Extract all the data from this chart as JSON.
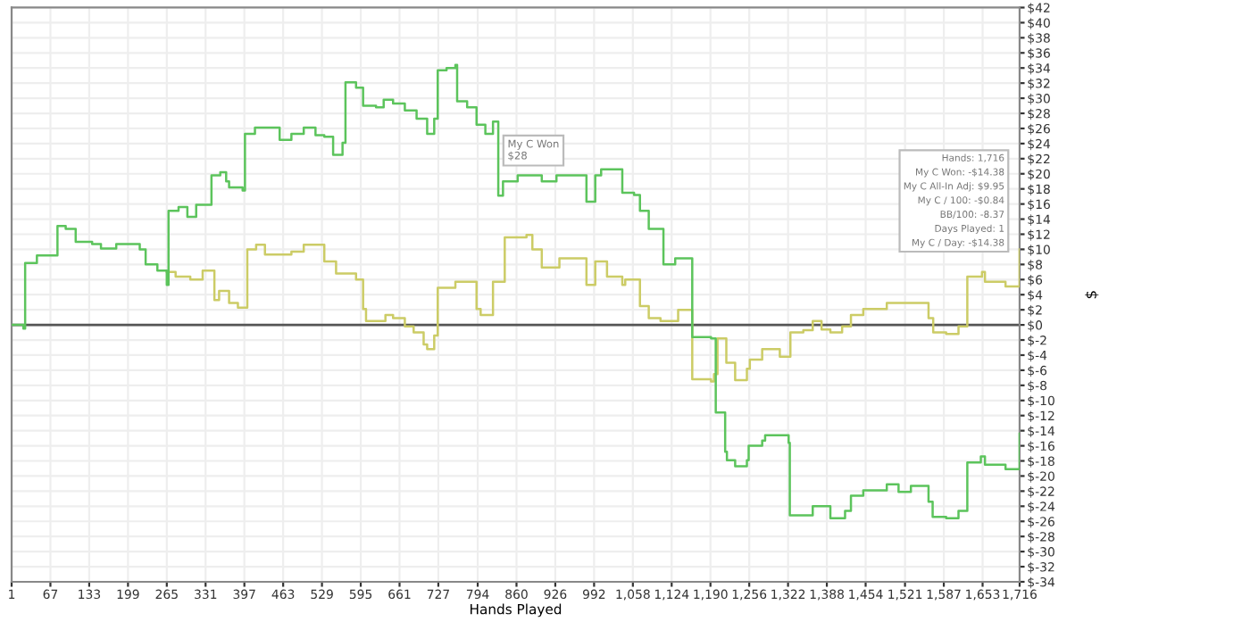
{
  "chart_data": {
    "type": "step",
    "xlabel": "Hands Played",
    "ylabel": "$",
    "xlim": [
      1,
      1716
    ],
    "xticks": [
      1,
      67,
      133,
      199,
      265,
      331,
      397,
      463,
      529,
      595,
      661,
      727,
      794,
      860,
      926,
      992,
      {
        "value": 1058,
        "label": "1,058"
      },
      {
        "value": 1124,
        "label": "1,124"
      },
      {
        "value": 1190,
        "label": "1,190"
      },
      {
        "value": 1256,
        "label": "1,256"
      },
      {
        "value": 1322,
        "label": "1,322"
      },
      {
        "value": 1388,
        "label": "1,388"
      },
      {
        "value": 1454,
        "label": "1,454"
      },
      {
        "value": 1521,
        "label": "1,521"
      },
      {
        "value": 1587,
        "label": "1,587"
      },
      {
        "value": 1653,
        "label": "1,653"
      },
      {
        "value": 1716,
        "label": "1,716"
      }
    ],
    "ylim": [
      -34,
      42
    ],
    "yticks": [
      {
        "value": -34,
        "label": "$-34"
      },
      {
        "value": -32,
        "label": "$-32"
      },
      {
        "value": -30,
        "label": "$-30"
      },
      {
        "value": -28,
        "label": "$-28"
      },
      {
        "value": -26,
        "label": "$-26"
      },
      {
        "value": -24,
        "label": "$-24"
      },
      {
        "value": -22,
        "label": "$-22"
      },
      {
        "value": -20,
        "label": "$-20"
      },
      {
        "value": -18,
        "label": "$-18"
      },
      {
        "value": -16,
        "label": "$-16"
      },
      {
        "value": -14,
        "label": "$-14"
      },
      {
        "value": -12,
        "label": "$-12"
      },
      {
        "value": -10,
        "label": "$-10"
      },
      {
        "value": -8,
        "label": "$-8"
      },
      {
        "value": -6,
        "label": "$-6"
      },
      {
        "value": -4,
        "label": "$-4"
      },
      {
        "value": -2,
        "label": "$-2"
      },
      {
        "value": 0,
        "label": "$0"
      },
      {
        "value": 2,
        "label": "$2"
      },
      {
        "value": 4,
        "label": "$4"
      },
      {
        "value": 6,
        "label": "$6"
      },
      {
        "value": 8,
        "label": "$8"
      },
      {
        "value": 10,
        "label": "$10"
      },
      {
        "value": 12,
        "label": "$12"
      },
      {
        "value": 14,
        "label": "$14"
      },
      {
        "value": 16,
        "label": "$16"
      },
      {
        "value": 18,
        "label": "$18"
      },
      {
        "value": 20,
        "label": "$20"
      },
      {
        "value": 22,
        "label": "$22"
      },
      {
        "value": 24,
        "label": "$24"
      },
      {
        "value": 26,
        "label": "$26"
      },
      {
        "value": 28,
        "label": "$28"
      },
      {
        "value": 30,
        "label": "$30"
      },
      {
        "value": 32,
        "label": "$32"
      },
      {
        "value": 34,
        "label": "$34"
      },
      {
        "value": 36,
        "label": "$36"
      },
      {
        "value": 38,
        "label": "$38"
      },
      {
        "value": 40,
        "label": "$40"
      },
      {
        "value": 42,
        "label": "$42"
      }
    ],
    "grid": true,
    "ref_lines": [
      {
        "axis": "y",
        "value": 0,
        "color": "#555555"
      }
    ],
    "annotations": [
      "My C Won\n$28",
      "Hands: 1,716\nMy C Won: -$14.38\nMy C All-In Adj: $9.95\nMy C / 100: -$0.84\nBB/100: -8.37\nDays Played: 1\nMy C / Day: -$14.38"
    ],
    "series": [
      {
        "color": "#cccc66",
        "x": [
          265,
          280,
          305,
          326,
          346,
          354,
          371,
          386,
          402,
          417,
          432,
          477,
          498,
          533,
          553,
          569,
          587,
          599,
          604,
          637,
          650,
          670,
          685,
          702,
          708,
          720,
          726,
          756,
          792,
          799,
          820,
          840,
          877,
          887,
          903,
          933,
          979,
          994,
          1014,
          1040,
          1045,
          1070,
          1085,
          1105,
          1135,
          1156,
          1159,
          1191,
          1196,
          1202,
          1217,
          1232,
          1252,
          1257,
          1278,
          1308,
          1323,
          1326,
          1348,
          1364,
          1379,
          1394,
          1414,
          1429,
          1450,
          1490,
          1531,
          1561,
          1569,
          1591,
          1612,
          1627,
          1652,
          1657,
          1692,
          1713,
          1716
        ],
        "values": [
          7.0,
          6.4,
          6.0,
          7.2,
          3.3,
          4.5,
          2.9,
          2.3,
          10.0,
          10.6,
          9.3,
          9.7,
          10.6,
          8.4,
          6.8,
          6.8,
          6.0,
          2.1,
          0.5,
          1.3,
          0.9,
          -0.2,
          -1.0,
          -2.6,
          -3.2,
          -1.4,
          4.9,
          5.7,
          2.1,
          1.3,
          5.7,
          11.6,
          11.9,
          10.0,
          7.6,
          8.8,
          5.3,
          8.4,
          6.4,
          5.3,
          6.0,
          2.5,
          0.9,
          0.5,
          2.0,
          2.0,
          -7.2,
          -7.5,
          -6.5,
          -1.8,
          -5.0,
          -7.3,
          -5.8,
          -4.6,
          -3.2,
          -4.2,
          -4.2,
          -1.0,
          -0.7,
          0.5,
          -0.6,
          -1.0,
          -0.2,
          1.3,
          2.1,
          2.9,
          2.9,
          0.9,
          -1.0,
          -1.2,
          -0.2,
          6.4,
          7.0,
          5.7,
          5.1,
          5.1,
          10.0
        ]
      },
      {
        "color": "#5cc45c",
        "x": [
          1,
          21,
          24,
          44,
          79,
          93,
          110,
          138,
          153,
          179,
          219,
          229,
          249,
          265,
          268,
          285,
          300,
          315,
          336,
          341,
          356,
          366,
          371,
          394,
          398,
          415,
          457,
          477,
          498,
          518,
          533,
          548,
          564,
          569,
          587,
          599,
          621,
          634,
          650,
          670,
          690,
          708,
          720,
          726,
          741,
          756,
          759,
          776,
          792,
          807,
          820,
          829,
          837,
          862,
          903,
          928,
          979,
          994,
          1004,
          1040,
          1060,
          1070,
          1085,
          1110,
          1130,
          1158,
          1159,
          1191,
          1199,
          1215,
          1218,
          1232,
          1252,
          1255,
          1278,
          1283,
          1323,
          1325,
          1348,
          1364,
          1394,
          1419,
          1429,
          1450,
          1490,
          1510,
          1531,
          1561,
          1568,
          1591,
          1612,
          1627,
          1650,
          1657,
          1692,
          1713,
          1716
        ],
        "values": [
          0,
          -0.5,
          8.2,
          9.2,
          13.1,
          12.7,
          11.0,
          10.7,
          10.1,
          10.7,
          10.0,
          8.0,
          7.2,
          5.3,
          15.1,
          15.6,
          14.3,
          15.9,
          15.9,
          19.8,
          20.2,
          19.0,
          18.2,
          17.8,
          25.3,
          26.1,
          24.5,
          25.3,
          26.1,
          25.1,
          24.9,
          22.5,
          24.1,
          32.1,
          31.4,
          29.0,
          28.8,
          29.8,
          29.3,
          28.4,
          27.3,
          25.3,
          27.3,
          33.7,
          34.0,
          34.4,
          29.6,
          28.8,
          26.5,
          25.3,
          26.9,
          17.1,
          19.0,
          19.8,
          19.0,
          19.8,
          16.3,
          19.8,
          20.6,
          17.5,
          17.2,
          15.1,
          12.7,
          8.0,
          8.8,
          8.8,
          -1.6,
          -1.8,
          -11.6,
          -16.8,
          -17.9,
          -18.7,
          -17.9,
          -16.0,
          -15.3,
          -14.6,
          -15.6,
          -25.2,
          -25.2,
          -24.0,
          -25.6,
          -24.6,
          -22.6,
          -21.9,
          -21.1,
          -22.1,
          -21.3,
          -23.4,
          -25.4,
          -25.6,
          -24.6,
          -18.2,
          -17.4,
          -18.5,
          -19.1,
          -19.1,
          -14.4
        ]
      }
    ]
  }
}
